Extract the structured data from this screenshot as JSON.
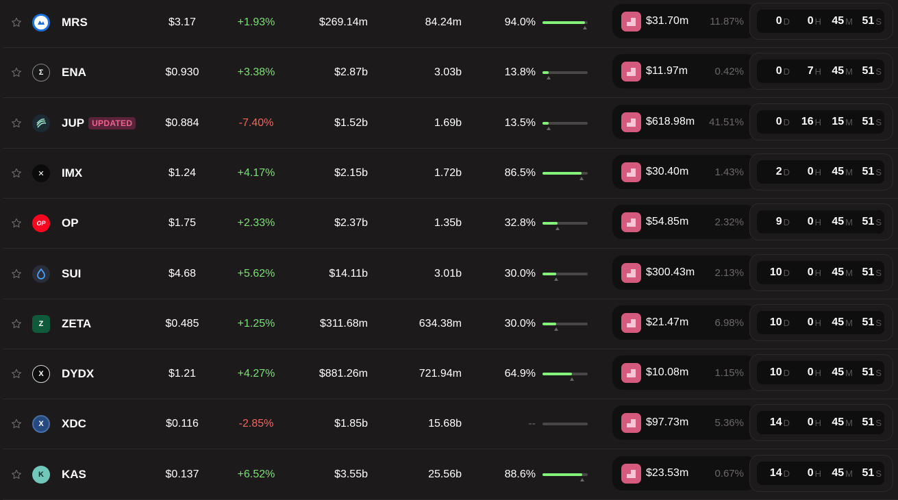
{
  "rows": [
    {
      "symbol": "MRS",
      "badge": "",
      "price": "$3.17",
      "change": "+1.93%",
      "dir": "up",
      "mcap": "$269.14m",
      "volume": "84.24m",
      "pct_label": "94.0%",
      "pct_value": 94.0,
      "marker": 94.0,
      "fund_amount": "$31.70m",
      "fund_pct": "11.87%",
      "d": "0",
      "h": "0",
      "m": "45",
      "s": "51",
      "logo_color": "#ffffff",
      "logo_bg": "#ffffff",
      "logo_fg": "#1b6fd8",
      "logo_icon": "mars-logo-icon"
    },
    {
      "symbol": "ENA",
      "badge": "",
      "price": "$0.930",
      "change": "+3.38%",
      "dir": "up",
      "mcap": "$2.87b",
      "volume": "3.03b",
      "pct_label": "13.8%",
      "pct_value": 13.8,
      "marker": 13.8,
      "fund_amount": "$11.97m",
      "fund_pct": "0.42%",
      "d": "0",
      "h": "7",
      "m": "45",
      "s": "51",
      "logo_bg": "#1a1a1a",
      "logo_fg": "#ffffff",
      "logo_icon": "ethena-logo-icon"
    },
    {
      "symbol": "JUP",
      "badge": "UPDATED",
      "price": "$0.884",
      "change": "-7.40%",
      "dir": "down",
      "mcap": "$1.52b",
      "volume": "1.69b",
      "pct_label": "13.5%",
      "pct_value": 13.5,
      "marker": 13.5,
      "fund_amount": "$618.98m",
      "fund_pct": "41.51%",
      "d": "0",
      "h": "16",
      "m": "15",
      "s": "51",
      "logo_bg": "#1c2a33",
      "logo_fg": "#9ee6c9",
      "logo_icon": "jupiter-logo-icon"
    },
    {
      "symbol": "IMX",
      "badge": "",
      "price": "$1.24",
      "change": "+4.17%",
      "dir": "up",
      "mcap": "$2.15b",
      "volume": "1.72b",
      "pct_label": "86.5%",
      "pct_value": 86.5,
      "marker": 86.5,
      "fund_amount": "$30.40m",
      "fund_pct": "1.43%",
      "d": "2",
      "h": "0",
      "m": "45",
      "s": "51",
      "logo_bg": "#0b0b0b",
      "logo_fg": "#ffffff",
      "logo_icon": "immutable-x-logo-icon"
    },
    {
      "symbol": "OP",
      "badge": "",
      "price": "$1.75",
      "change": "+2.33%",
      "dir": "up",
      "mcap": "$2.37b",
      "volume": "1.35b",
      "pct_label": "32.8%",
      "pct_value": 32.8,
      "marker": 32.8,
      "fund_amount": "$54.85m",
      "fund_pct": "2.32%",
      "d": "9",
      "h": "0",
      "m": "45",
      "s": "51",
      "logo_bg": "#ff0420",
      "logo_fg": "#ffffff",
      "logo_icon": "optimism-logo-icon"
    },
    {
      "symbol": "SUI",
      "badge": "",
      "price": "$4.68",
      "change": "+5.62%",
      "dir": "up",
      "mcap": "$14.11b",
      "volume": "3.01b",
      "pct_label": "30.0%",
      "pct_value": 30.0,
      "marker": 30.0,
      "fund_amount": "$300.43m",
      "fund_pct": "2.13%",
      "d": "10",
      "h": "0",
      "m": "45",
      "s": "51",
      "logo_bg": "#2a2d3a",
      "logo_fg": "#4da2ff",
      "logo_icon": "sui-logo-icon"
    },
    {
      "symbol": "ZETA",
      "badge": "",
      "price": "$0.485",
      "change": "+1.25%",
      "dir": "up",
      "mcap": "$311.68m",
      "volume": "634.38m",
      "pct_label": "30.0%",
      "pct_value": 30.0,
      "marker": 30.0,
      "fund_amount": "$21.47m",
      "fund_pct": "6.98%",
      "d": "10",
      "h": "0",
      "m": "45",
      "s": "51",
      "logo_bg": "#0e5a3a",
      "logo_fg": "#ffffff",
      "logo_icon": "zeta-logo-icon"
    },
    {
      "symbol": "DYDX",
      "badge": "",
      "price": "$1.21",
      "change": "+4.27%",
      "dir": "up",
      "mcap": "$881.26m",
      "volume": "721.94m",
      "pct_label": "64.9%",
      "pct_value": 64.9,
      "marker": 64.9,
      "fund_amount": "$10.08m",
      "fund_pct": "1.15%",
      "d": "10",
      "h": "0",
      "m": "45",
      "s": "51",
      "logo_bg": "#0e0e0e",
      "logo_fg": "#ffffff",
      "logo_icon": "dydx-logo-icon"
    },
    {
      "symbol": "XDC",
      "badge": "",
      "price": "$0.116",
      "change": "-2.85%",
      "dir": "down",
      "mcap": "$1.85b",
      "volume": "15.68b",
      "pct_label": "--",
      "pct_value": 0,
      "marker": null,
      "fund_amount": "$97.73m",
      "fund_pct": "5.36%",
      "d": "14",
      "h": "0",
      "m": "45",
      "s": "51",
      "logo_bg": "#244a80",
      "logo_fg": "#ffffff",
      "logo_icon": "xdc-logo-icon"
    },
    {
      "symbol": "KAS",
      "badge": "",
      "price": "$0.137",
      "change": "+6.52%",
      "dir": "up",
      "mcap": "$3.55b",
      "volume": "25.56b",
      "pct_label": "88.6%",
      "pct_value": 88.6,
      "marker": 88.6,
      "fund_amount": "$23.53m",
      "fund_pct": "0.67%",
      "d": "14",
      "h": "0",
      "m": "45",
      "s": "51",
      "logo_bg": "#70c7ba",
      "logo_fg": "#0e2a26",
      "logo_icon": "kaspa-logo-icon"
    }
  ],
  "units": {
    "d": "D",
    "h": "H",
    "m": "M",
    "s": "S"
  },
  "colors": {
    "up": "#7ee077",
    "down": "#f2675f",
    "bar_fill": "#84f27a",
    "accent": "#d45a7e"
  }
}
